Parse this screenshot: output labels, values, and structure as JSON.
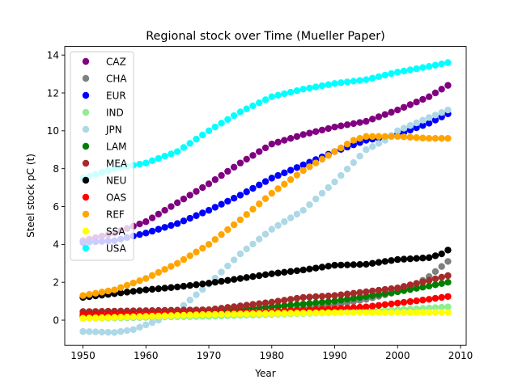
{
  "chart_data": {
    "type": "scatter",
    "title": "Regional stock over Time (Mueller Paper)",
    "xlabel": "Year",
    "ylabel": "Steel stock pC (t)",
    "xlim": [
      1947.1,
      2010.9
    ],
    "ylim": [
      -1.33,
      14.45
    ],
    "xticks": [
      1950,
      1960,
      1970,
      1980,
      1990,
      2000,
      2010
    ],
    "yticks": [
      0,
      2,
      4,
      6,
      8,
      10,
      12,
      14
    ],
    "grid": false,
    "legend_position": "top-left",
    "x_start": 1950,
    "x_end": 2008,
    "series": [
      {
        "name": "CAZ",
        "color": "#800080",
        "x": [
          1950,
          1955,
          1960,
          1965,
          1970,
          1975,
          1980,
          1985,
          1990,
          1995,
          2000,
          2005,
          2008
        ],
        "values": [
          4.2,
          4.6,
          5.2,
          6.2,
          7.2,
          8.3,
          9.3,
          9.8,
          10.2,
          10.5,
          11.1,
          11.8,
          12.4
        ]
      },
      {
        "name": "CHA",
        "color": "#808080",
        "x": [
          1950,
          1960,
          1970,
          1980,
          1990,
          1995,
          2000,
          2003,
          2005,
          2008
        ],
        "values": [
          0.1,
          0.15,
          0.25,
          0.45,
          0.8,
          1.1,
          1.5,
          1.9,
          2.3,
          3.1
        ]
      },
      {
        "name": "EUR",
        "color": "#0000ff",
        "x": [
          1950,
          1955,
          1960,
          1965,
          1970,
          1975,
          1980,
          1985,
          1990,
          1995,
          2000,
          2005,
          2008
        ],
        "values": [
          4.1,
          4.2,
          4.6,
          5.1,
          5.8,
          6.6,
          7.5,
          8.2,
          8.9,
          9.5,
          9.8,
          10.4,
          10.9
        ]
      },
      {
        "name": "IND",
        "color": "#90ee90",
        "x": [
          1950,
          1960,
          1970,
          1980,
          1990,
          2000,
          2008
        ],
        "values": [
          0.1,
          0.15,
          0.2,
          0.3,
          0.4,
          0.55,
          0.7
        ]
      },
      {
        "name": "JPN",
        "color": "#add8e6",
        "x": [
          1950,
          1955,
          1958,
          1962,
          1965,
          1970,
          1975,
          1980,
          1985,
          1990,
          1995,
          1998,
          2000,
          2005,
          2008
        ],
        "values": [
          -0.6,
          -0.65,
          -0.5,
          0.0,
          0.5,
          1.9,
          3.5,
          4.8,
          5.8,
          7.3,
          9.0,
          9.5,
          10.0,
          10.7,
          11.1
        ]
      },
      {
        "name": "LAM",
        "color": "#008000",
        "x": [
          1950,
          1960,
          1970,
          1980,
          1990,
          2000,
          2005,
          2008
        ],
        "values": [
          0.2,
          0.3,
          0.45,
          0.7,
          1.0,
          1.5,
          1.8,
          2.0
        ]
      },
      {
        "name": "MEA",
        "color": "#a52a2a",
        "x": [
          1950,
          1960,
          1970,
          1980,
          1985,
          1990,
          1995,
          2000,
          2005,
          2008
        ],
        "values": [
          0.45,
          0.5,
          0.55,
          0.95,
          1.2,
          1.3,
          1.5,
          1.7,
          2.1,
          2.35
        ]
      },
      {
        "name": "NEU",
        "color": "#000000",
        "x": [
          1950,
          1955,
          1960,
          1965,
          1970,
          1975,
          1980,
          1985,
          1990,
          1995,
          2000,
          2005,
          2007,
          2008
        ],
        "values": [
          1.2,
          1.4,
          1.6,
          1.75,
          1.95,
          2.2,
          2.45,
          2.65,
          2.9,
          2.95,
          3.2,
          3.3,
          3.5,
          3.7
        ]
      },
      {
        "name": "OAS",
        "color": "#ff0000",
        "x": [
          1950,
          1960,
          1970,
          1980,
          1990,
          1995,
          2000,
          2005,
          2008
        ],
        "values": [
          0.3,
          0.32,
          0.35,
          0.45,
          0.6,
          0.7,
          0.9,
          1.1,
          1.25
        ]
      },
      {
        "name": "REF",
        "color": "#ffa500",
        "x": [
          1950,
          1955,
          1960,
          1965,
          1970,
          1975,
          1980,
          1985,
          1990,
          1993,
          1995,
          2000,
          2005,
          2008
        ],
        "values": [
          1.3,
          1.6,
          2.2,
          3.0,
          4.0,
          5.3,
          6.7,
          7.9,
          8.9,
          9.5,
          9.7,
          9.7,
          9.6,
          9.6
        ]
      },
      {
        "name": "SSA",
        "color": "#ffff00",
        "x": [
          1950,
          1960,
          1970,
          1980,
          1990,
          2000,
          2008
        ],
        "values": [
          0.1,
          0.2,
          0.3,
          0.35,
          0.4,
          0.4,
          0.4
        ]
      },
      {
        "name": "USA",
        "color": "#00ffff",
        "x": [
          1950,
          1955,
          1960,
          1965,
          1970,
          1975,
          1980,
          1985,
          1990,
          1995,
          2000,
          2005,
          2008
        ],
        "values": [
          7.5,
          8.0,
          8.3,
          8.9,
          10.0,
          11.0,
          11.8,
          12.2,
          12.5,
          12.7,
          13.1,
          13.4,
          13.6
        ]
      }
    ]
  }
}
